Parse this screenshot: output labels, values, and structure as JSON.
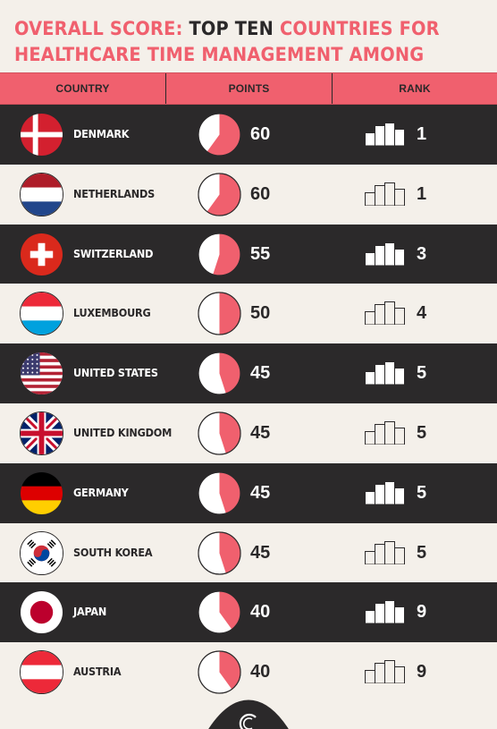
{
  "title": {
    "part1": "Overall score:",
    "part2": "Top ten",
    "part3": "countries for healthcare time management among highly developed economies"
  },
  "headers": {
    "country": "COUNTRY",
    "points": "POINTS",
    "rank": "RANK"
  },
  "colors": {
    "accent": "#f0606e",
    "dark": "#2b292a",
    "light": "#f4f0ea"
  },
  "chart_data": {
    "type": "table",
    "title": "Overall score: Top ten countries for healthcare time management among highly developed economies",
    "columns": [
      "COUNTRY",
      "POINTS",
      "RANK"
    ],
    "points_max": 100,
    "rows": [
      {
        "country": "DENMARK",
        "flag": "denmark-flag-icon",
        "points": 60,
        "rank": 1
      },
      {
        "country": "NETHERLANDS",
        "flag": "netherlands-flag-icon",
        "points": 60,
        "rank": 1
      },
      {
        "country": "SWITZERLAND",
        "flag": "switzerland-flag-icon",
        "points": 55,
        "rank": 3
      },
      {
        "country": "LUXEMBOURG",
        "flag": "luxembourg-flag-icon",
        "points": 50,
        "rank": 4
      },
      {
        "country": "UNITED STATES",
        "flag": "united-states-flag-icon",
        "points": 45,
        "rank": 5
      },
      {
        "country": "UNITED KINGDOM",
        "flag": "united-kingdom-flag-icon",
        "points": 45,
        "rank": 5
      },
      {
        "country": "GERMANY",
        "flag": "germany-flag-icon",
        "points": 45,
        "rank": 5
      },
      {
        "country": "SOUTH KOREA",
        "flag": "south-korea-flag-icon",
        "points": 45,
        "rank": 5
      },
      {
        "country": "JAPAN",
        "flag": "japan-flag-icon",
        "points": 40,
        "rank": 9
      },
      {
        "country": "AUSTRIA",
        "flag": "austria-flag-icon",
        "points": 40,
        "rank": 9
      }
    ]
  }
}
